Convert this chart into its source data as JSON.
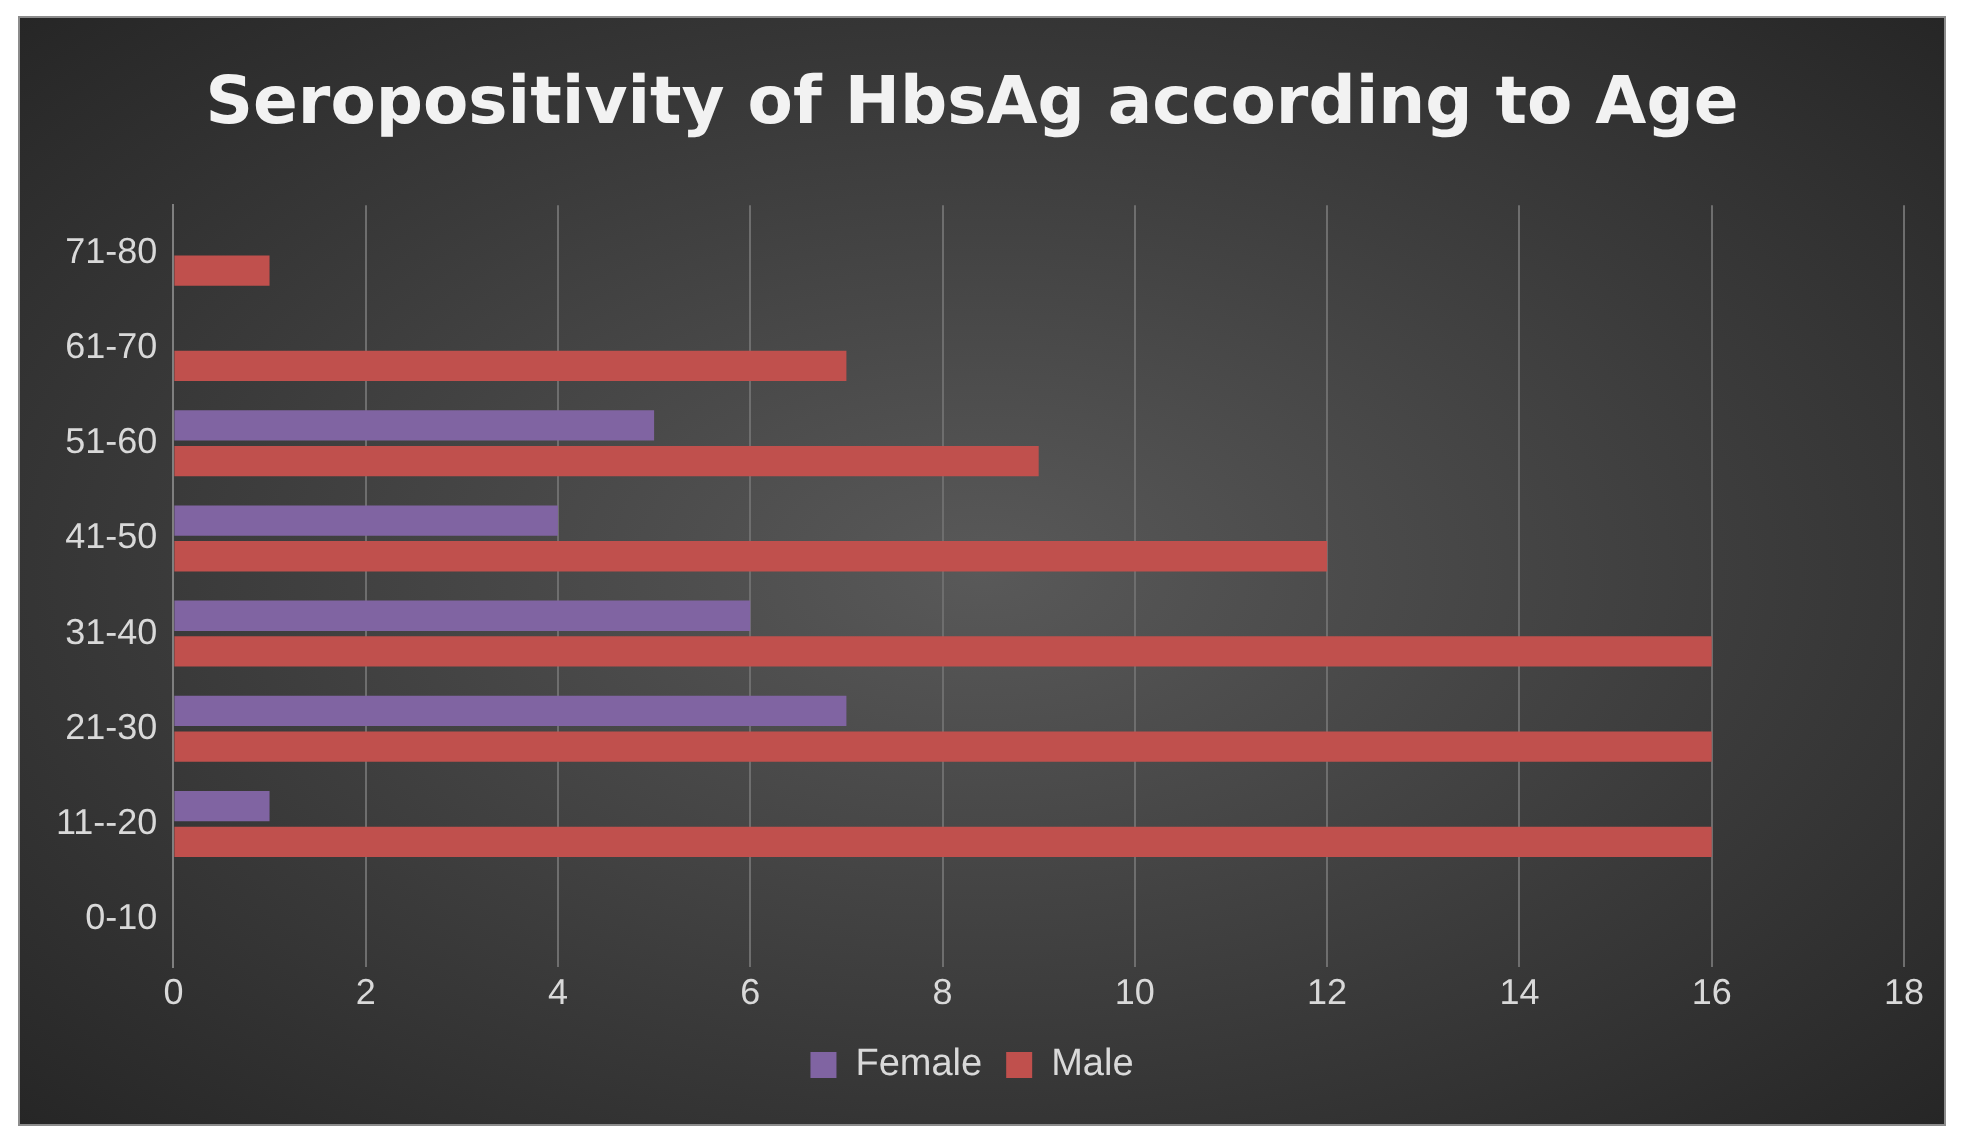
{
  "chart_data": {
    "type": "bar",
    "orientation": "horizontal",
    "title": "Seropositivity of HbsAg according to Age",
    "categories": [
      "71-80",
      "61-70",
      "51-60",
      "41-50",
      "31-40",
      "21-30",
      "11--20",
      "0-10"
    ],
    "series": [
      {
        "name": "Female",
        "color": "#8064a2",
        "values": [
          0,
          0,
          5,
          4,
          6,
          7,
          1,
          0
        ]
      },
      {
        "name": "Male",
        "color": "#c0504d",
        "values": [
          1,
          7,
          9,
          12,
          16,
          16,
          16,
          0
        ]
      }
    ],
    "xlim": [
      0,
      18
    ],
    "xticks": [
      0,
      2,
      4,
      6,
      8,
      10,
      12,
      14,
      16,
      18
    ],
    "grid": "x",
    "legend": "bottom"
  }
}
